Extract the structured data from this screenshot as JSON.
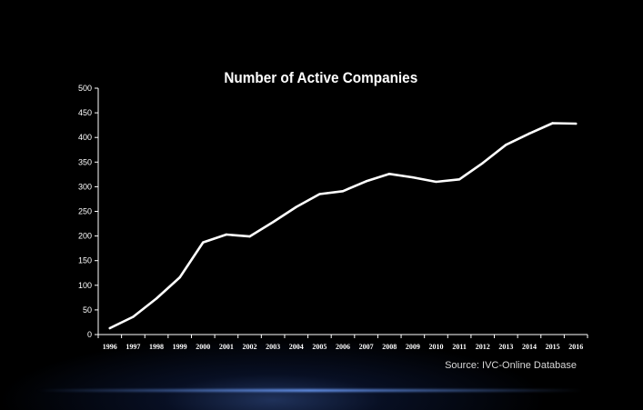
{
  "chart_data": {
    "type": "line",
    "title": "Number of Active Companies",
    "xlabel": "",
    "ylabel": "",
    "ylim": [
      0,
      500
    ],
    "yticks": [
      "0",
      "50",
      "100",
      "150",
      "200",
      "250",
      "300",
      "350",
      "400",
      "450",
      "500"
    ],
    "categories": [
      "1996",
      "1997",
      "1998",
      "1999",
      "2000",
      "2001",
      "2002",
      "2003",
      "2004",
      "2005",
      "2006",
      "2007",
      "2008",
      "2009",
      "2010",
      "2011",
      "2012",
      "2013",
      "2014",
      "2015",
      "2016"
    ],
    "series": [
      {
        "values": [
          13,
          36,
          73,
          116,
          187,
          203,
          199,
          228,
          259,
          285,
          291,
          311,
          326,
          319,
          310,
          315,
          348,
          385,
          408,
          429,
          428
        ],
        "color": "#ffffff"
      }
    ],
    "grid": false,
    "legend": "none"
  },
  "source_note": "Source: IVC-Online Database",
  "colors": {
    "background": "#000000",
    "line": "#ffffff",
    "glow": "#6ea0ff"
  }
}
